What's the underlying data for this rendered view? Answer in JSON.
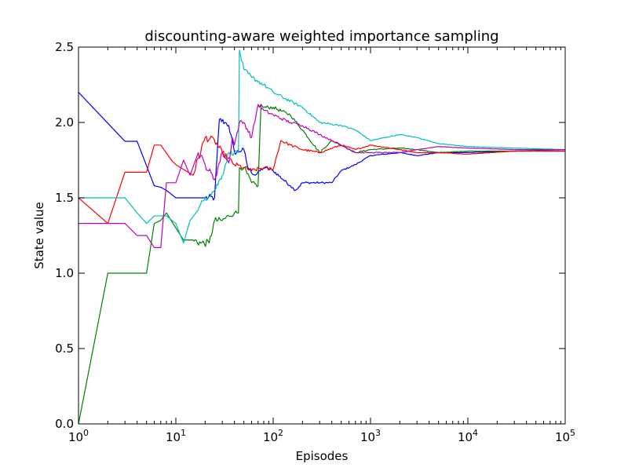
{
  "chart_data": {
    "type": "line",
    "title": "discounting-aware weighted importance sampling",
    "xlabel": "Episodes",
    "ylabel": "State value",
    "xscale": "log",
    "xlim": [
      1,
      100000
    ],
    "ylim": [
      0.0,
      2.5
    ],
    "grid": false,
    "legend": "none",
    "x_ticks": [
      {
        "value": 1,
        "base": "10",
        "exp": "0"
      },
      {
        "value": 10,
        "base": "10",
        "exp": "1"
      },
      {
        "value": 100,
        "base": "10",
        "exp": "2"
      },
      {
        "value": 1000,
        "base": "10",
        "exp": "3"
      },
      {
        "value": 10000,
        "base": "10",
        "exp": "4"
      },
      {
        "value": 100000,
        "base": "10",
        "exp": "5"
      }
    ],
    "y_ticks": [
      {
        "value": 0.0,
        "label": "0.0"
      },
      {
        "value": 0.5,
        "label": "0.5"
      },
      {
        "value": 1.0,
        "label": "1.0"
      },
      {
        "value": 1.5,
        "label": "1.5"
      },
      {
        "value": 2.0,
        "label": "2.0"
      },
      {
        "value": 2.5,
        "label": "2.5"
      }
    ],
    "series": [
      {
        "color": "#0000ff",
        "points": [
          [
            1,
            2.2
          ],
          [
            3,
            1.875
          ],
          [
            4,
            1.875
          ],
          [
            6,
            1.58
          ],
          [
            7,
            1.57
          ],
          [
            8,
            1.55
          ],
          [
            10,
            1.5
          ],
          [
            20,
            1.5
          ],
          [
            25,
            1.5
          ],
          [
            28,
            2.02
          ],
          [
            32,
            2.0
          ],
          [
            35,
            1.98
          ],
          [
            40,
            1.8
          ],
          [
            50,
            1.82
          ],
          [
            55,
            1.7
          ],
          [
            65,
            1.65
          ],
          [
            80,
            1.7
          ],
          [
            100,
            1.68
          ],
          [
            150,
            1.58
          ],
          [
            170,
            1.55
          ],
          [
            200,
            1.6
          ],
          [
            300,
            1.6
          ],
          [
            400,
            1.6
          ],
          [
            500,
            1.68
          ],
          [
            700,
            1.72
          ],
          [
            1000,
            1.78
          ],
          [
            2000,
            1.8
          ],
          [
            3000,
            1.78
          ],
          [
            5000,
            1.8
          ],
          [
            10000,
            1.8
          ],
          [
            30000,
            1.81
          ],
          [
            100000,
            1.81
          ]
        ]
      },
      {
        "color": "#008000",
        "points": [
          [
            1,
            0.0
          ],
          [
            2,
            1.0
          ],
          [
            3,
            1.0
          ],
          [
            5,
            1.0
          ],
          [
            6,
            1.33
          ],
          [
            7,
            1.35
          ],
          [
            8,
            1.4
          ],
          [
            10,
            1.3
          ],
          [
            12,
            1.22
          ],
          [
            15,
            1.22
          ],
          [
            18,
            1.2
          ],
          [
            22,
            1.2
          ],
          [
            25,
            1.35
          ],
          [
            30,
            1.35
          ],
          [
            35,
            1.38
          ],
          [
            40,
            1.4
          ],
          [
            44,
            1.4
          ],
          [
            45,
            1.7
          ],
          [
            50,
            1.7
          ],
          [
            60,
            1.6
          ],
          [
            70,
            1.58
          ],
          [
            75,
            2.12
          ],
          [
            80,
            2.1
          ],
          [
            100,
            2.1
          ],
          [
            150,
            2.05
          ],
          [
            200,
            1.95
          ],
          [
            300,
            1.8
          ],
          [
            400,
            1.88
          ],
          [
            500,
            1.85
          ],
          [
            700,
            1.8
          ],
          [
            1000,
            1.82
          ],
          [
            2000,
            1.83
          ],
          [
            3000,
            1.82
          ],
          [
            5000,
            1.8
          ],
          [
            10000,
            1.81
          ],
          [
            30000,
            1.81
          ],
          [
            100000,
            1.82
          ]
        ]
      },
      {
        "color": "#ff0000",
        "points": [
          [
            1,
            1.5
          ],
          [
            2,
            1.33
          ],
          [
            3,
            1.67
          ],
          [
            4,
            1.67
          ],
          [
            5,
            1.67
          ],
          [
            6,
            1.85
          ],
          [
            7,
            1.85
          ],
          [
            9,
            1.75
          ],
          [
            10,
            1.72
          ],
          [
            15,
            1.65
          ],
          [
            20,
            1.9
          ],
          [
            25,
            1.88
          ],
          [
            30,
            1.8
          ],
          [
            40,
            1.72
          ],
          [
            50,
            1.7
          ],
          [
            60,
            1.68
          ],
          [
            80,
            1.7
          ],
          [
            100,
            1.69
          ],
          [
            120,
            1.88
          ],
          [
            150,
            1.85
          ],
          [
            200,
            1.82
          ],
          [
            300,
            1.8
          ],
          [
            500,
            1.85
          ],
          [
            700,
            1.82
          ],
          [
            1000,
            1.85
          ],
          [
            2000,
            1.82
          ],
          [
            3000,
            1.8
          ],
          [
            5000,
            1.8
          ],
          [
            10000,
            1.79
          ],
          [
            30000,
            1.81
          ],
          [
            100000,
            1.81
          ]
        ]
      },
      {
        "color": "#00bfbf",
        "points": [
          [
            1,
            1.5
          ],
          [
            3,
            1.5
          ],
          [
            4,
            1.4
          ],
          [
            5,
            1.33
          ],
          [
            6,
            1.38
          ],
          [
            7,
            1.38
          ],
          [
            8,
            1.38
          ],
          [
            10,
            1.33
          ],
          [
            12,
            1.2
          ],
          [
            14,
            1.35
          ],
          [
            17,
            1.42
          ],
          [
            20,
            1.5
          ],
          [
            25,
            1.55
          ],
          [
            30,
            1.65
          ],
          [
            35,
            1.8
          ],
          [
            40,
            1.8
          ],
          [
            44,
            1.8
          ],
          [
            45,
            2.48
          ],
          [
            50,
            2.35
          ],
          [
            60,
            2.3
          ],
          [
            80,
            2.25
          ],
          [
            100,
            2.2
          ],
          [
            200,
            2.1
          ],
          [
            300,
            2.0
          ],
          [
            500,
            1.98
          ],
          [
            700,
            1.95
          ],
          [
            1000,
            1.88
          ],
          [
            2000,
            1.92
          ],
          [
            3000,
            1.9
          ],
          [
            5000,
            1.86
          ],
          [
            10000,
            1.84
          ],
          [
            30000,
            1.83
          ],
          [
            100000,
            1.82
          ]
        ]
      },
      {
        "color": "#bf00bf",
        "points": [
          [
            1,
            1.33
          ],
          [
            3,
            1.33
          ],
          [
            4,
            1.25
          ],
          [
            5,
            1.25
          ],
          [
            6,
            1.17
          ],
          [
            7,
            1.17
          ],
          [
            8,
            1.6
          ],
          [
            10,
            1.6
          ],
          [
            12,
            1.75
          ],
          [
            14,
            1.65
          ],
          [
            17,
            1.8
          ],
          [
            20,
            1.72
          ],
          [
            25,
            1.62
          ],
          [
            30,
            1.8
          ],
          [
            35,
            1.73
          ],
          [
            38,
            1.9
          ],
          [
            40,
            1.85
          ],
          [
            45,
            2.0
          ],
          [
            50,
            2.0
          ],
          [
            60,
            1.9
          ],
          [
            70,
            2.12
          ],
          [
            80,
            2.08
          ],
          [
            100,
            2.05
          ],
          [
            150,
            2.0
          ],
          [
            200,
            1.98
          ],
          [
            300,
            1.92
          ],
          [
            500,
            1.85
          ],
          [
            700,
            1.8
          ],
          [
            1000,
            1.8
          ],
          [
            2000,
            1.8
          ],
          [
            3000,
            1.82
          ],
          [
            5000,
            1.84
          ],
          [
            10000,
            1.83
          ],
          [
            30000,
            1.82
          ],
          [
            100000,
            1.82
          ]
        ]
      }
    ]
  }
}
